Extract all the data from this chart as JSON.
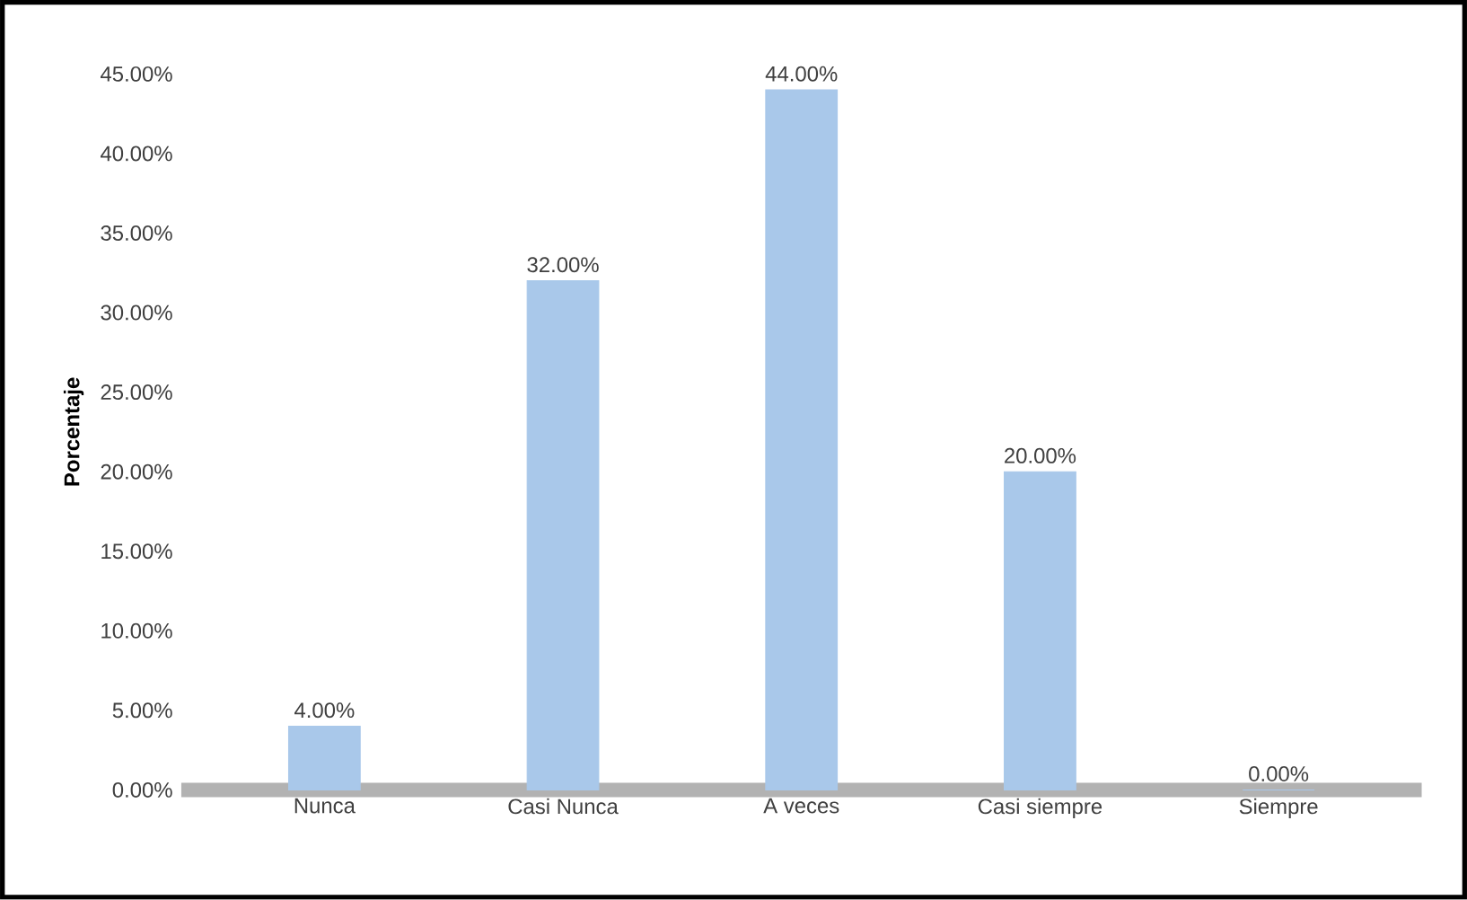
{
  "chart_data": {
    "type": "bar",
    "ylabel": "Porcentaje",
    "categories": [
      "Nunca",
      "Casi Nunca",
      "A veces",
      "Casi siempre",
      "Siempre"
    ],
    "values": [
      4,
      32,
      44,
      20,
      0
    ],
    "color": "#a9c8ea",
    "value_labels": [
      "4.00%",
      "32.00%",
      "44.00%",
      "20.00%",
      "0.00%"
    ],
    "ylim": [
      0,
      45
    ],
    "yticks": [
      {
        "value": 0,
        "label": "0.00%"
      },
      {
        "value": 5,
        "label": "5.00%"
      },
      {
        "value": 10,
        "label": "10.00%"
      },
      {
        "value": 15,
        "label": "15.00%"
      },
      {
        "value": 20,
        "label": "20.00%"
      },
      {
        "value": 25,
        "label": "25.00%"
      },
      {
        "value": 30,
        "label": "30.00%"
      },
      {
        "value": 35,
        "label": "35.00%"
      },
      {
        "value": 40,
        "label": "40.00%"
      },
      {
        "value": 45,
        "label": "45.00%"
      }
    ],
    "grid": false
  }
}
